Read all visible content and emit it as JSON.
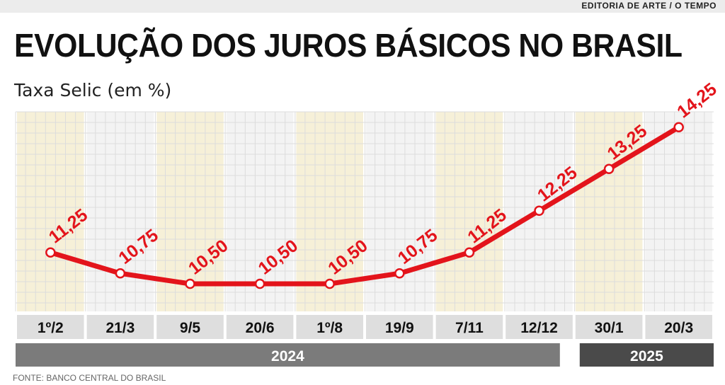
{
  "header": {
    "credit": "EDITORIA DE ARTE / O TEMPO",
    "title": "EVOLUÇÃO DOS JUROS BÁSICOS NO BRASIL",
    "subtitle": "Taxa Selic (em %)"
  },
  "footer": {
    "source": "FONTE: BANCO CENTRAL DO BRASIL"
  },
  "colors": {
    "line": "#e3141b",
    "col_tan": "#f6f0d8",
    "col_light": "#f3f3f3",
    "grid": "#dcdcdc",
    "label_box": "#dedede",
    "year_2024": "#7b7b7b",
    "year_2025": "#4a4a4a"
  },
  "chart_data": {
    "type": "line",
    "title": "EVOLUÇÃO DOS JUROS BÁSICOS NO BRASIL",
    "ylabel": "Taxa Selic (em %)",
    "categories": [
      "1º/2",
      "21/3",
      "9/5",
      "20/6",
      "1º/8",
      "19/9",
      "7/11",
      "12/12",
      "30/1",
      "20/3"
    ],
    "values": [
      11.25,
      10.75,
      10.5,
      10.5,
      10.5,
      10.75,
      11.25,
      12.25,
      13.25,
      14.25
    ],
    "value_labels": [
      "11,25",
      "10,75",
      "10,50",
      "10,50",
      "10,50",
      "10,75",
      "11,25",
      "12,25",
      "13,25",
      "14,25"
    ],
    "years": [
      {
        "label": "2024",
        "span": 8
      },
      {
        "label": "2025",
        "span": 2
      }
    ],
    "grid": true
  }
}
